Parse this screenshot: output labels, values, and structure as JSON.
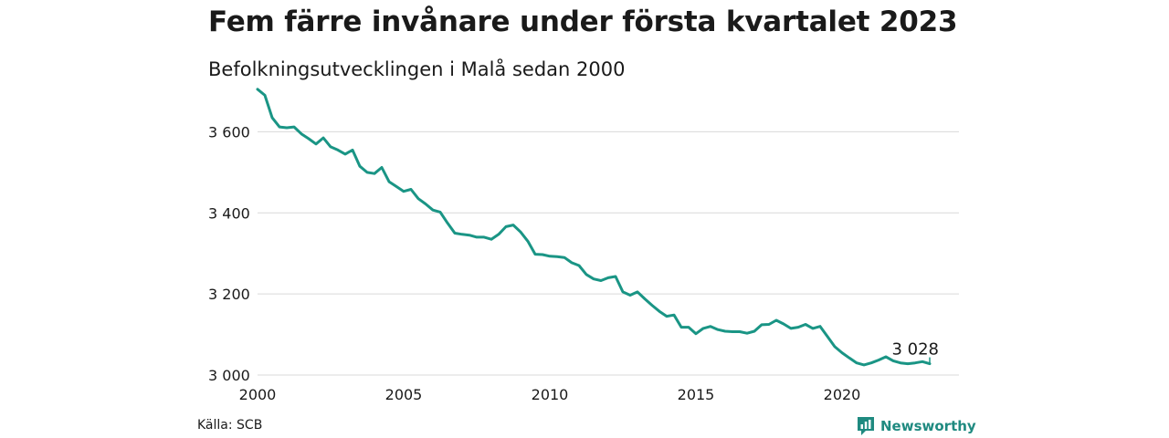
{
  "header": {
    "title": "Fem färre invånare under första kvartalet 2023",
    "subtitle": "Befolkningsutvecklingen i Malå sedan 2000"
  },
  "footer": {
    "source": "Källa: SCB",
    "brand": "Newsworthy",
    "brand_icon": "bar-chart-logo-icon",
    "brand_color": "#1f8a80"
  },
  "colors": {
    "line": "#1a9585",
    "grid": "#d9d9d9",
    "text": "#1a1a1a"
  },
  "chart_data": {
    "type": "line",
    "title": "Fem färre invånare under första kvartalet 2023",
    "subtitle": "Befolkningsutvecklingen i Malå sedan 2000",
    "xlabel": "",
    "ylabel": "",
    "xlim": [
      2000,
      2024
    ],
    "ylim": [
      3000,
      3700
    ],
    "x_ticks": [
      2000,
      2005,
      2010,
      2015,
      2020
    ],
    "x_tick_labels": [
      "2000",
      "2005",
      "2010",
      "2015",
      "2020"
    ],
    "y_ticks": [
      3000,
      3200,
      3400,
      3600
    ],
    "y_tick_labels": [
      "3 000",
      "3 200",
      "3 400",
      "3 600"
    ],
    "grid": "horizontal",
    "legend": "none",
    "end_label": "3 028",
    "series": [
      {
        "x": [
          2000.0,
          2000.25,
          2000.5,
          2000.75,
          2001.0,
          2001.25,
          2001.5,
          2001.75,
          2002.0,
          2002.25,
          2002.5,
          2002.75,
          2003.0,
          2003.25,
          2003.5,
          2003.75,
          2004.0,
          2004.25,
          2004.5,
          2004.75,
          2005.0,
          2005.25,
          2005.5,
          2005.75,
          2006.0,
          2006.25,
          2006.5,
          2006.75,
          2007.0,
          2007.25,
          2007.5,
          2007.75,
          2008.0,
          2008.25,
          2008.5,
          2008.75,
          2009.0,
          2009.25,
          2009.5,
          2009.75,
          2010.0,
          2010.25,
          2010.5,
          2010.75,
          2011.0,
          2011.25,
          2011.5,
          2011.75,
          2012.0,
          2012.25,
          2012.5,
          2012.75,
          2013.0,
          2013.25,
          2013.5,
          2013.75,
          2014.0,
          2014.25,
          2014.5,
          2014.75,
          2015.0,
          2015.25,
          2015.5,
          2015.75,
          2016.0,
          2016.25,
          2016.5,
          2016.75,
          2017.0,
          2017.25,
          2017.5,
          2017.75,
          2018.0,
          2018.25,
          2018.5,
          2018.75,
          2019.0,
          2019.25,
          2019.5,
          2019.75,
          2020.0,
          2020.25,
          2020.5,
          2020.75,
          2021.0,
          2021.25,
          2021.5,
          2021.75,
          2022.0,
          2022.25,
          2022.5,
          2022.75,
          2023.0
        ],
        "y": [
          3705,
          3690,
          3635,
          3612,
          3610,
          3612,
          3595,
          3583,
          3570,
          3585,
          3563,
          3555,
          3545,
          3555,
          3515,
          3500,
          3497,
          3512,
          3477,
          3465,
          3453,
          3458,
          3435,
          3422,
          3407,
          3402,
          3375,
          3350,
          3347,
          3345,
          3340,
          3340,
          3335,
          3347,
          3366,
          3370,
          3353,
          3330,
          3298,
          3297,
          3293,
          3292,
          3290,
          3277,
          3270,
          3248,
          3237,
          3233,
          3240,
          3243,
          3205,
          3197,
          3205,
          3188,
          3172,
          3157,
          3145,
          3148,
          3118,
          3118,
          3102,
          3115,
          3120,
          3112,
          3108,
          3107,
          3107,
          3103,
          3108,
          3124,
          3125,
          3135,
          3126,
          3115,
          3118,
          3125,
          3115,
          3120,
          3095,
          3070,
          3055,
          3042,
          3030,
          3025,
          3030,
          3037,
          3045,
          3035,
          3030,
          3028,
          3030,
          3033,
          3028
        ]
      }
    ]
  }
}
